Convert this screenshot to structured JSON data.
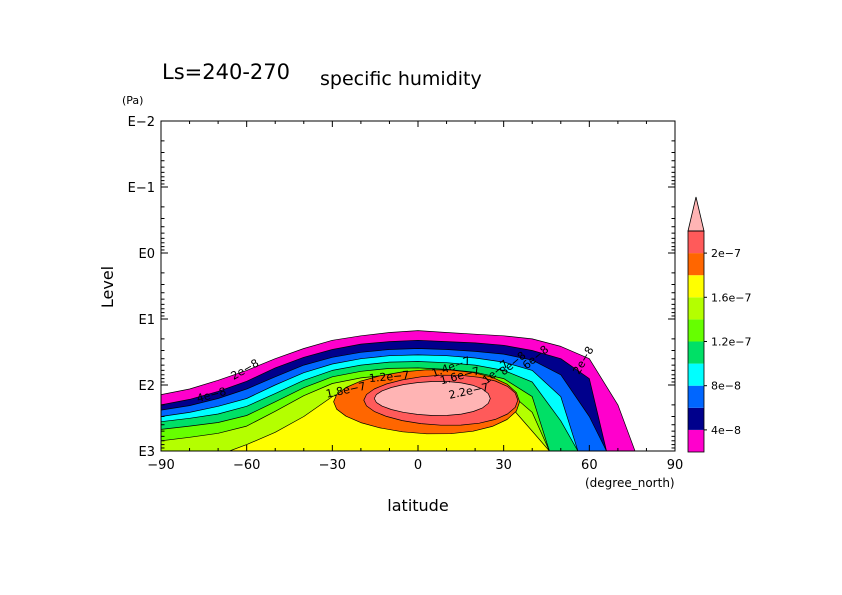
{
  "chart_data": {
    "type": "contour",
    "title": "Ls=240-270",
    "subtitle": "specific humidity",
    "xlabel": "latitude",
    "x_unit": "(degree_north)",
    "ylabel": "Level",
    "y_unit": "(Pa)",
    "xlim": [
      -90,
      90
    ],
    "x_ticks": [
      -90,
      -60,
      -30,
      0,
      30,
      60,
      90
    ],
    "x_tick_labels": [
      "−90",
      "−60",
      "−30",
      "0",
      "30",
      "60",
      "90"
    ],
    "y_scale": "log",
    "y_inverted": true,
    "ylim_pa": [
      0.01,
      1000
    ],
    "y_ticks": [
      0.01,
      0.1,
      1,
      10,
      100,
      1000
    ],
    "y_tick_labels": [
      "E−2",
      "E−1",
      "E0",
      "E1",
      "E2",
      "E3"
    ],
    "contour_interval": 2e-08,
    "levels": [
      2e-08,
      4e-08,
      6e-08,
      8e-08,
      1e-07,
      1.2e-07,
      1.4e-07,
      1.6e-07,
      1.8e-07,
      2e-07,
      2.2e-07
    ],
    "fill_colors": [
      "#ff00cc",
      "#00008c",
      "#0066ff",
      "#00ffff",
      "#00e066",
      "#66ff00",
      "#b4ff00",
      "#ffff00",
      "#ff6600",
      "#ff5a5a",
      "#ffb4b4"
    ],
    "colorbar": {
      "labels": [
        "2e−7",
        "1.6e−7",
        "1.2e−7",
        "8e−8",
        "4e−8"
      ],
      "label_values": [
        2e-07,
        1.6e-07,
        1.2e-07,
        8e-08,
        4e-08
      ],
      "bands": [
        "#ff00cc",
        "#00008c",
        "#0066ff",
        "#00ffff",
        "#00e066",
        "#66ff00",
        "#b4ff00",
        "#ffff00",
        "#ff6600",
        "#ff5a5a"
      ],
      "extend_color": "#ffb4b4"
    },
    "contour_labels": [
      {
        "text": "2e−8",
        "lat": -60,
        "pa": 65,
        "angle": -30
      },
      {
        "text": "4e−8",
        "lat": -72,
        "pa": 160,
        "angle": -15
      },
      {
        "text": "1.8e−7",
        "lat": -25,
        "pa": 135,
        "angle": -12
      },
      {
        "text": "1.2e−7",
        "lat": -10,
        "pa": 85,
        "angle": -5
      },
      {
        "text": "1.4e−7",
        "lat": 12,
        "pa": 60,
        "angle": -20
      },
      {
        "text": "1.6e−7",
        "lat": 15,
        "pa": 82,
        "angle": -15
      },
      {
        "text": "2.2e−7",
        "lat": 18,
        "pa": 140,
        "angle": -12
      },
      {
        "text": "1e−7",
        "lat": 28,
        "pa": 70,
        "angle": -40
      },
      {
        "text": "8e−8",
        "lat": 34,
        "pa": 52,
        "angle": -40
      },
      {
        "text": "6e−8",
        "lat": 42,
        "pa": 42,
        "angle": -40
      },
      {
        "text": "2e−8",
        "lat": 59,
        "pa": 45,
        "angle": -60
      }
    ]
  }
}
